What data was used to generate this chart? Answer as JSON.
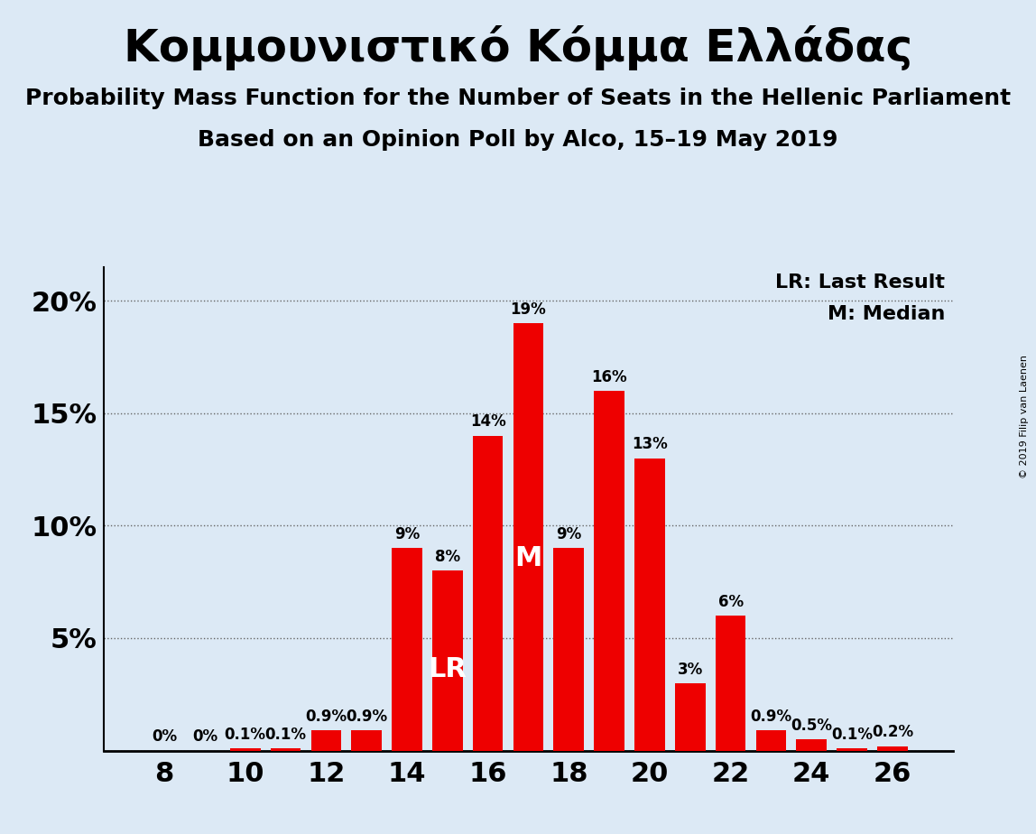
{
  "title": "Κομμουνιστικό Κόμμα Ελλάδας",
  "subtitle1": "Probability Mass Function for the Number of Seats in the Hellenic Parliament",
  "subtitle2": "Based on an Opinion Poll by Alco, 15–19 May 2019",
  "copyright": "© 2019 Filip van Laenen",
  "seats": [
    8,
    9,
    10,
    11,
    12,
    13,
    14,
    15,
    16,
    17,
    18,
    19,
    20,
    21,
    22,
    23,
    24,
    25,
    26
  ],
  "probs": [
    0.0,
    0.0,
    0.1,
    0.1,
    0.9,
    0.9,
    9.0,
    8.0,
    14.0,
    19.0,
    9.0,
    16.0,
    13.0,
    3.0,
    6.0,
    0.9,
    0.5,
    0.1,
    0.2
  ],
  "labels": [
    "0%",
    "0%",
    "0.1%",
    "0.1%",
    "0.9%",
    "0.9%",
    "9%",
    "8%",
    "14%",
    "19%",
    "9%",
    "16%",
    "13%",
    "3%",
    "6%",
    "0.9%",
    "0.5%",
    "0.1%",
    "0.2%"
  ],
  "bar_color": "#ee0000",
  "bg_color": "#dce9f5",
  "last_result_seat": 15,
  "median_seat": 17,
  "ytick_labels": [
    "",
    "5%",
    "10%",
    "15%",
    "20%"
  ],
  "ytick_values": [
    0,
    5,
    10,
    15,
    20
  ],
  "ylim": [
    0,
    21.5
  ],
  "xlim": [
    6.5,
    27.5
  ],
  "xtick_values": [
    8,
    10,
    12,
    14,
    16,
    18,
    20,
    22,
    24,
    26
  ],
  "legend_lr": "LR: Last Result",
  "legend_m": "M: Median",
  "title_fontsize": 36,
  "subtitle_fontsize": 18,
  "label_fontsize": 12,
  "axis_fontsize": 22
}
